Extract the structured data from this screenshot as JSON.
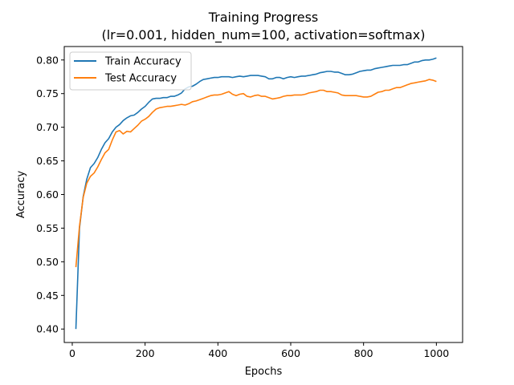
{
  "chart_data": {
    "type": "line",
    "title": "Training Progress",
    "subtitle": "(lr=0.001, hidden_num=100, activation=softmax)",
    "xlabel": "Epochs",
    "ylabel": "Accuracy",
    "xlim": [
      -22,
      1072
    ],
    "ylim": [
      0.38,
      0.82
    ],
    "xticks": [
      0,
      200,
      400,
      600,
      800,
      1000
    ],
    "yticks": [
      0.4,
      0.45,
      0.5,
      0.55,
      0.6,
      0.65,
      0.7,
      0.75,
      0.8
    ],
    "grid": false,
    "legend_position": "top-left",
    "x": [
      10,
      20,
      30,
      40,
      50,
      60,
      70,
      80,
      90,
      100,
      110,
      120,
      130,
      140,
      150,
      160,
      170,
      180,
      190,
      200,
      210,
      220,
      230,
      240,
      250,
      260,
      270,
      280,
      290,
      300,
      310,
      320,
      330,
      340,
      350,
      360,
      370,
      380,
      390,
      400,
      410,
      420,
      430,
      440,
      450,
      460,
      470,
      480,
      490,
      500,
      510,
      520,
      530,
      540,
      550,
      560,
      570,
      580,
      590,
      600,
      610,
      620,
      630,
      640,
      650,
      660,
      670,
      680,
      690,
      700,
      710,
      720,
      730,
      740,
      750,
      760,
      770,
      780,
      790,
      800,
      810,
      820,
      830,
      840,
      850,
      860,
      870,
      880,
      890,
      900,
      910,
      920,
      930,
      940,
      950,
      960,
      970,
      980,
      990,
      1000
    ],
    "series": [
      {
        "name": "Train Accuracy",
        "color": "#1f77b4",
        "values": [
          0.4,
          0.55,
          0.597,
          0.623,
          0.64,
          0.646,
          0.655,
          0.667,
          0.677,
          0.683,
          0.693,
          0.7,
          0.704,
          0.71,
          0.714,
          0.717,
          0.718,
          0.722,
          0.727,
          0.731,
          0.737,
          0.742,
          0.743,
          0.743,
          0.744,
          0.744,
          0.746,
          0.746,
          0.748,
          0.751,
          0.757,
          0.76,
          0.761,
          0.764,
          0.768,
          0.771,
          0.772,
          0.773,
          0.774,
          0.774,
          0.775,
          0.775,
          0.775,
          0.774,
          0.775,
          0.776,
          0.775,
          0.776,
          0.777,
          0.777,
          0.777,
          0.776,
          0.775,
          0.772,
          0.772,
          0.774,
          0.774,
          0.772,
          0.774,
          0.775,
          0.774,
          0.775,
          0.776,
          0.776,
          0.777,
          0.778,
          0.779,
          0.781,
          0.782,
          0.783,
          0.783,
          0.782,
          0.782,
          0.78,
          0.778,
          0.778,
          0.779,
          0.781,
          0.783,
          0.784,
          0.785,
          0.785,
          0.787,
          0.788,
          0.789,
          0.79,
          0.791,
          0.792,
          0.792,
          0.792,
          0.793,
          0.793,
          0.795,
          0.797,
          0.797,
          0.799,
          0.8,
          0.8,
          0.801,
          0.803
        ]
      },
      {
        "name": "Test Accuracy",
        "color": "#ff7f0e",
        "values": [
          0.492,
          0.553,
          0.596,
          0.617,
          0.627,
          0.632,
          0.641,
          0.652,
          0.662,
          0.667,
          0.681,
          0.693,
          0.695,
          0.69,
          0.694,
          0.693,
          0.698,
          0.703,
          0.709,
          0.712,
          0.716,
          0.722,
          0.727,
          0.729,
          0.73,
          0.731,
          0.731,
          0.732,
          0.733,
          0.734,
          0.733,
          0.735,
          0.738,
          0.739,
          0.741,
          0.743,
          0.745,
          0.747,
          0.748,
          0.748,
          0.749,
          0.751,
          0.753,
          0.749,
          0.747,
          0.749,
          0.75,
          0.746,
          0.745,
          0.747,
          0.748,
          0.746,
          0.746,
          0.744,
          0.742,
          0.743,
          0.744,
          0.746,
          0.747,
          0.747,
          0.748,
          0.748,
          0.748,
          0.749,
          0.751,
          0.752,
          0.753,
          0.755,
          0.755,
          0.753,
          0.753,
          0.752,
          0.751,
          0.748,
          0.747,
          0.747,
          0.747,
          0.747,
          0.746,
          0.745,
          0.745,
          0.746,
          0.749,
          0.752,
          0.753,
          0.755,
          0.755,
          0.757,
          0.759,
          0.759,
          0.761,
          0.763,
          0.765,
          0.766,
          0.767,
          0.768,
          0.769,
          0.771,
          0.77,
          0.768
        ]
      }
    ]
  }
}
